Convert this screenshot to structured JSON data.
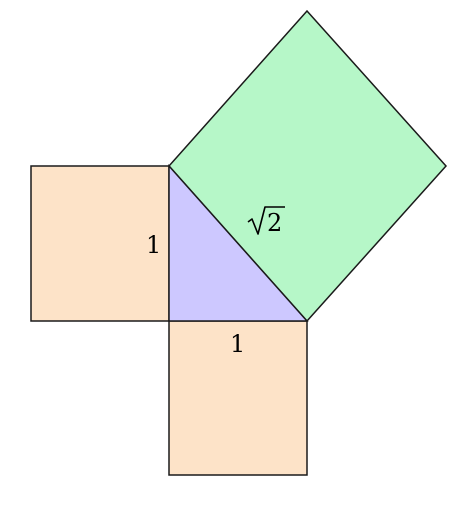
{
  "colors": {
    "left_square": "#fde3c8",
    "bottom_square": "#fde3c8",
    "hypotenuse_square": "#b6f7c8",
    "triangle": "#cdc8ff",
    "stroke": "#1a1a1a"
  },
  "labels": {
    "leg_vertical": "1",
    "leg_horizontal": "1",
    "hypotenuse_radicand": "2"
  }
}
